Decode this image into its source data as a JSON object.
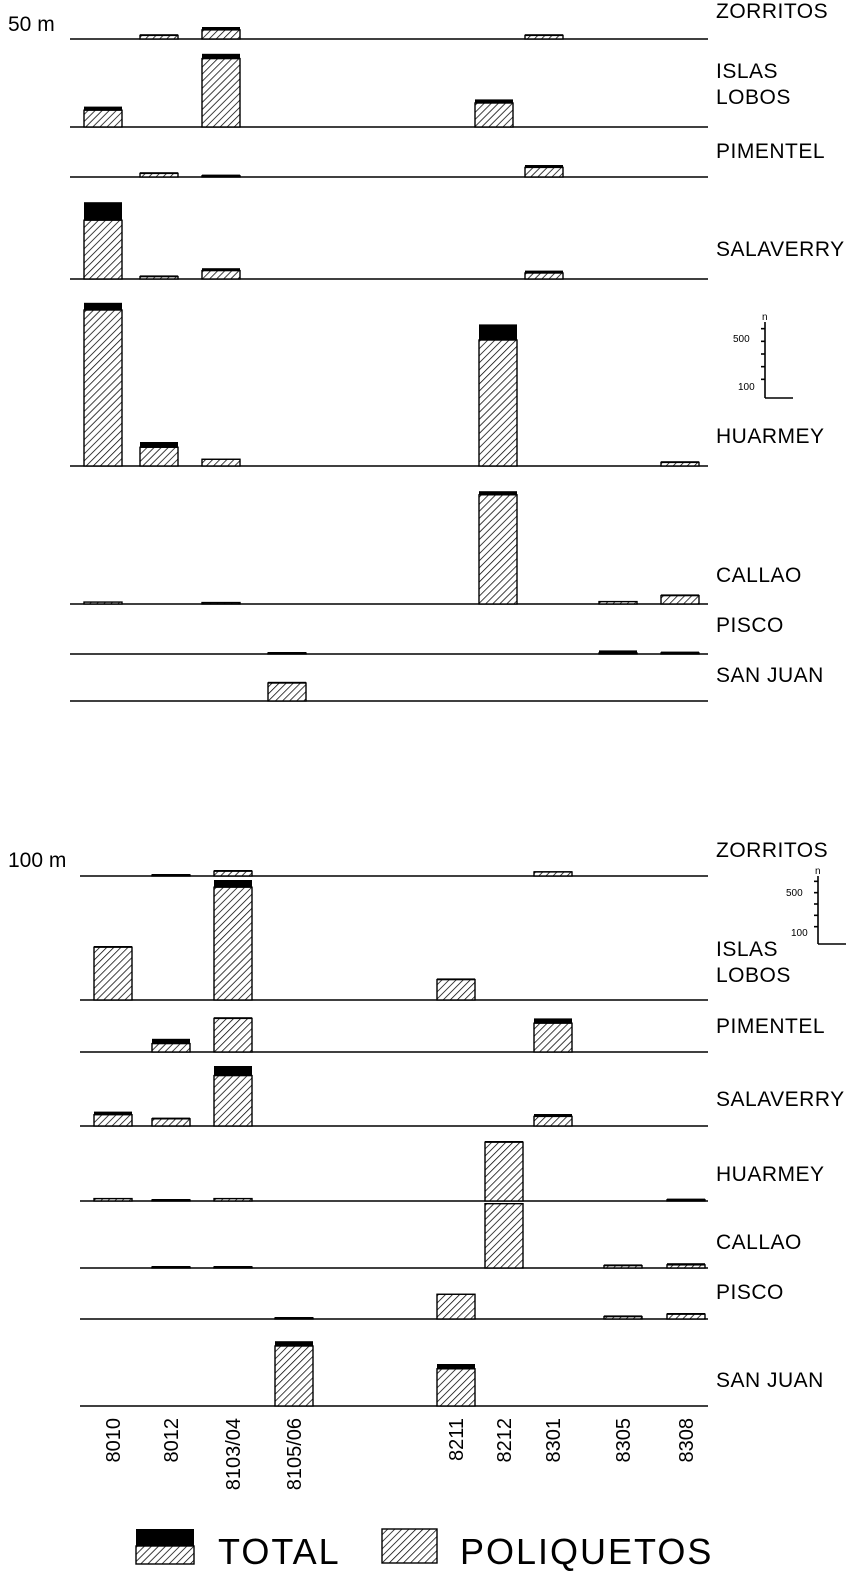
{
  "chart_data": {
    "type": "bar",
    "legend": [
      "TOTAL",
      "POLIQUETOS"
    ],
    "legend_position": "bottom",
    "categories": [
      "8010",
      "8012",
      "8103/04",
      "8105/06",
      "8211",
      "8212",
      "8301",
      "8305",
      "8308"
    ],
    "scale_bar": {
      "unit": "n",
      "tick_labels": [
        "500",
        "100"
      ]
    },
    "panels": [
      {
        "depth": "50 m",
        "stations": [
          {
            "name": "ZORRITOS",
            "values": [
              {
                "category": "8012",
                "total": 20,
                "poliquetos": 15
              },
              {
                "category": "8103/04",
                "total": 50,
                "poliquetos": 38
              },
              {
                "category": "8301",
                "total": 20,
                "poliquetos": 15
              }
            ]
          },
          {
            "name": "ISLAS\nLOBOS",
            "values": [
              {
                "category": "8010",
                "total": 85,
                "poliquetos": 70
              },
              {
                "category": "8103/04",
                "total": 305,
                "poliquetos": 285
              },
              {
                "category": "8211",
                "total": 115,
                "poliquetos": 100
              }
            ]
          },
          {
            "name": "PIMENTEL",
            "values": [
              {
                "category": "8012",
                "total": 20,
                "poliquetos": 15
              },
              {
                "category": "8103/04",
                "total": 10,
                "poliquetos": 5
              },
              {
                "category": "8301",
                "total": 50,
                "poliquetos": 40
              }
            ]
          },
          {
            "name": "SALAVERRY",
            "values": [
              {
                "category": "8010",
                "total": 320,
                "poliquetos": 245
              },
              {
                "category": "8012",
                "total": 15,
                "poliquetos": 10
              },
              {
                "category": "8103/04",
                "total": 45,
                "poliquetos": 35
              },
              {
                "category": "8301",
                "total": 35,
                "poliquetos": 25
              }
            ]
          },
          {
            "name": "HUARMEY",
            "values": [
              {
                "category": "8010",
                "total": 680,
                "poliquetos": 650
              },
              {
                "category": "8012",
                "total": 100,
                "poliquetos": 78
              },
              {
                "category": "8103/04",
                "total": 30,
                "poliquetos": 28
              },
              {
                "category": "8212",
                "total": 590,
                "poliquetos": 525
              },
              {
                "category": "8308",
                "total": 20,
                "poliquetos": 15
              }
            ]
          },
          {
            "name": "CALLAO",
            "values": [
              {
                "category": "8010",
                "total": 10,
                "poliquetos": 8
              },
              {
                "category": "8103/04",
                "total": 8,
                "poliquetos": 6
              },
              {
                "category": "8212",
                "total": 470,
                "poliquetos": 455
              },
              {
                "category": "8305",
                "total": 12,
                "poliquetos": 10
              },
              {
                "category": "8308",
                "total": 40,
                "poliquetos": 35
              }
            ]
          },
          {
            "name": "PISCO",
            "values": [
              {
                "category": "8105/06",
                "total": 3,
                "poliquetos": 2
              },
              {
                "category": "8305",
                "total": 15,
                "poliquetos": 3
              },
              {
                "category": "8308",
                "total": 10,
                "poliquetos": 3
              }
            ]
          },
          {
            "name": "SAN JUAN",
            "values": [
              {
                "category": "8105/06",
                "total": 80,
                "poliquetos": 75
              }
            ]
          }
        ]
      },
      {
        "depth": "100 m",
        "stations": [
          {
            "name": "ZORRITOS",
            "values": [
              {
                "category": "8012",
                "total": 8,
                "poliquetos": 3
              },
              {
                "category": "8103/04",
                "total": 25,
                "poliquetos": 20
              },
              {
                "category": "8301",
                "total": 20,
                "poliquetos": 17
              }
            ]
          },
          {
            "name": "ISLAS\nLOBOS",
            "values": [
              {
                "category": "8010",
                "total": 225,
                "poliquetos": 220
              },
              {
                "category": "8103/04",
                "total": 500,
                "poliquetos": 470
              },
              {
                "category": "8211",
                "total": 90,
                "poliquetos": 85
              }
            ]
          },
          {
            "name": "PIMENTEL",
            "values": [
              {
                "category": "8012",
                "total": 55,
                "poliquetos": 35
              },
              {
                "category": "8103/04",
                "total": 145,
                "poliquetos": 140
              },
              {
                "category": "8301",
                "total": 140,
                "poliquetos": 120
              }
            ]
          },
          {
            "name": "SALAVERRY",
            "values": [
              {
                "category": "8010",
                "total": 60,
                "poliquetos": 47
              },
              {
                "category": "8012",
                "total": 35,
                "poliquetos": 30
              },
              {
                "category": "8103/04",
                "total": 250,
                "poliquetos": 210
              },
              {
                "category": "8301",
                "total": 50,
                "poliquetos": 40
              }
            ]
          },
          {
            "name": "HUARMEY",
            "values": [
              {
                "category": "8010",
                "total": 12,
                "poliquetos": 10
              },
              {
                "category": "8012",
                "total": 5,
                "poliquetos": 3
              },
              {
                "category": "8103/04",
                "total": 12,
                "poliquetos": 10
              },
              {
                "category": "8212",
                "total": 250,
                "poliquetos": 245
              },
              {
                "category": "8308",
                "total": 10,
                "poliquetos": 5
              }
            ]
          },
          {
            "name": "CALLAO",
            "values": [
              {
                "category": "8012",
                "total": 5,
                "poliquetos": 2
              },
              {
                "category": "8103/04",
                "total": 5,
                "poliquetos": 2
              },
              {
                "category": "8212",
                "total": 270,
                "poliquetos": 268
              },
              {
                "category": "8305",
                "total": 15,
                "poliquetos": 10
              },
              {
                "category": "8308",
                "total": 20,
                "poliquetos": 13
              }
            ]
          },
          {
            "name": "PISCO",
            "values": [
              {
                "category": "8105/06",
                "total": 4,
                "poliquetos": 1
              },
              {
                "category": "8211",
                "total": 105,
                "poliquetos": 103
              },
              {
                "category": "8305",
                "total": 15,
                "poliquetos": 10
              },
              {
                "category": "8308",
                "total": 25,
                "poliquetos": 20
              }
            ]
          },
          {
            "name": "SAN JUAN",
            "values": [
              {
                "category": "8105/06",
                "total": 270,
                "poliquetos": 250
              },
              {
                "category": "8211",
                "total": 175,
                "poliquetos": 155
              }
            ]
          }
        ]
      }
    ]
  }
}
